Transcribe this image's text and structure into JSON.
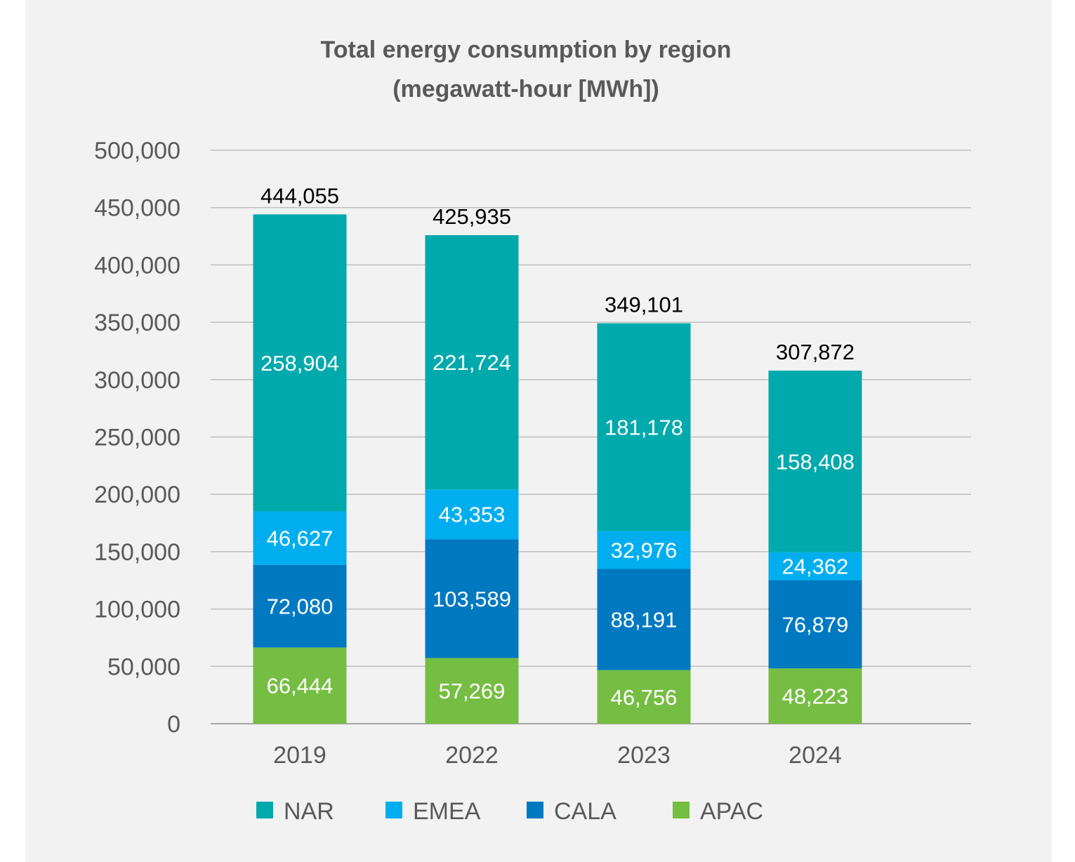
{
  "chart_data": {
    "type": "bar",
    "stacked": true,
    "title": [
      "Total energy consumption by region",
      "(megawatt-hour [MWh])"
    ],
    "categories": [
      "2019",
      "2022",
      "2023",
      "2024"
    ],
    "series": [
      {
        "name": "APAC",
        "color": "#76bd43",
        "values": [
          66444,
          57269,
          46756,
          48223
        ],
        "labels": [
          "66,444",
          "57,269",
          "46,756",
          "48,223"
        ]
      },
      {
        "name": "CALA",
        "color": "#0079c1",
        "values": [
          72080,
          103589,
          88191,
          76879
        ],
        "labels": [
          "72,080",
          "103,589",
          "88,191",
          "76,879"
        ]
      },
      {
        "name": "EMEA",
        "color": "#00aeef",
        "values": [
          46627,
          43353,
          32976,
          24362
        ],
        "labels": [
          "46,627",
          "43,353",
          "32,976",
          "24,362"
        ]
      },
      {
        "name": "NAR",
        "color": "#00a9ac",
        "values": [
          258904,
          221724,
          181178,
          158408
        ],
        "labels": [
          "258,904",
          "221,724",
          "181,178",
          "158,408"
        ]
      }
    ],
    "totals": [
      444055,
      425935,
      349101,
      307872
    ],
    "total_labels": [
      "444,055",
      "425,935",
      "349,101",
      "307,872"
    ],
    "ylim": [
      0,
      500000
    ],
    "yticks": [
      0,
      50000,
      100000,
      150000,
      200000,
      250000,
      300000,
      350000,
      400000,
      450000,
      500000
    ],
    "ytick_labels": [
      "0",
      "50,000",
      "100,000",
      "150,000",
      "200,000",
      "250,000",
      "300,000",
      "350,000",
      "400,000",
      "450,000",
      "500,000"
    ],
    "legend_order": [
      "NAR",
      "EMEA",
      "CALA",
      "APAC"
    ],
    "legend_position": "bottom",
    "grid": true,
    "xlabel": "",
    "ylabel": ""
  }
}
